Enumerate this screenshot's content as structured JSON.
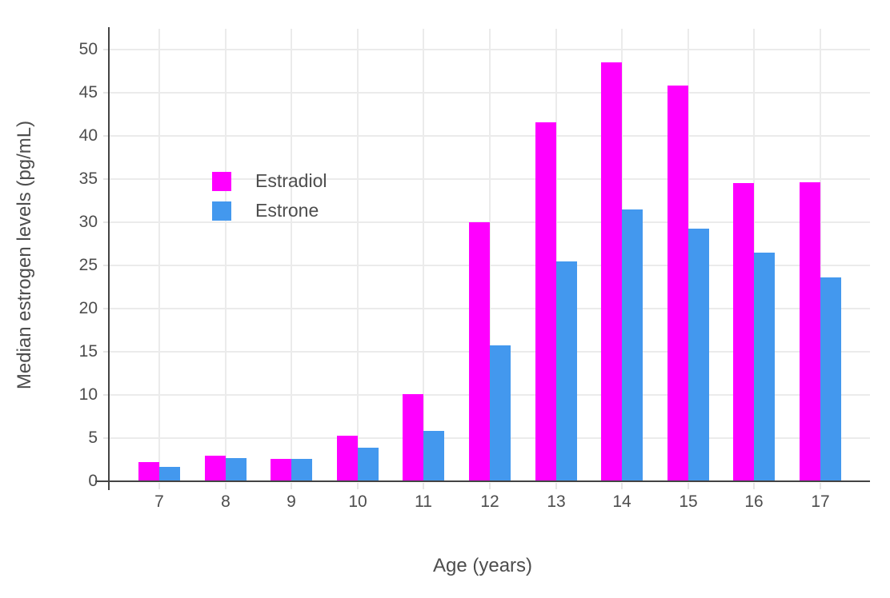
{
  "chart_data": {
    "type": "bar",
    "title": "",
    "xlabel": "Age (years)",
    "ylabel": "Median estrogen levels (pg/mL)",
    "categories": [
      "7",
      "8",
      "9",
      "10",
      "11",
      "12",
      "13",
      "14",
      "15",
      "16",
      "17"
    ],
    "series": [
      {
        "name": "Estradiol",
        "color": "#ff00ff",
        "values": [
          2.2,
          3.0,
          2.6,
          5.3,
          10.1,
          30.0,
          41.6,
          48.5,
          45.8,
          34.5,
          34.6
        ]
      },
      {
        "name": "Estrone",
        "color": "#4398ee",
        "values": [
          1.7,
          2.7,
          2.6,
          3.9,
          5.8,
          15.7,
          25.5,
          31.5,
          29.3,
          26.5,
          23.6
        ]
      }
    ],
    "ylim": [
      0,
      52.4
    ],
    "yticks": [
      0,
      5,
      10,
      15,
      20,
      25,
      30,
      35,
      40,
      45,
      50
    ],
    "grid": true,
    "grid_color": "#ebebeb",
    "axis_color": "#444444",
    "text_color": "#4d4d4d",
    "background": "#ffffff",
    "legend_position": "inside-top-left",
    "bar_mode": "grouped"
  }
}
